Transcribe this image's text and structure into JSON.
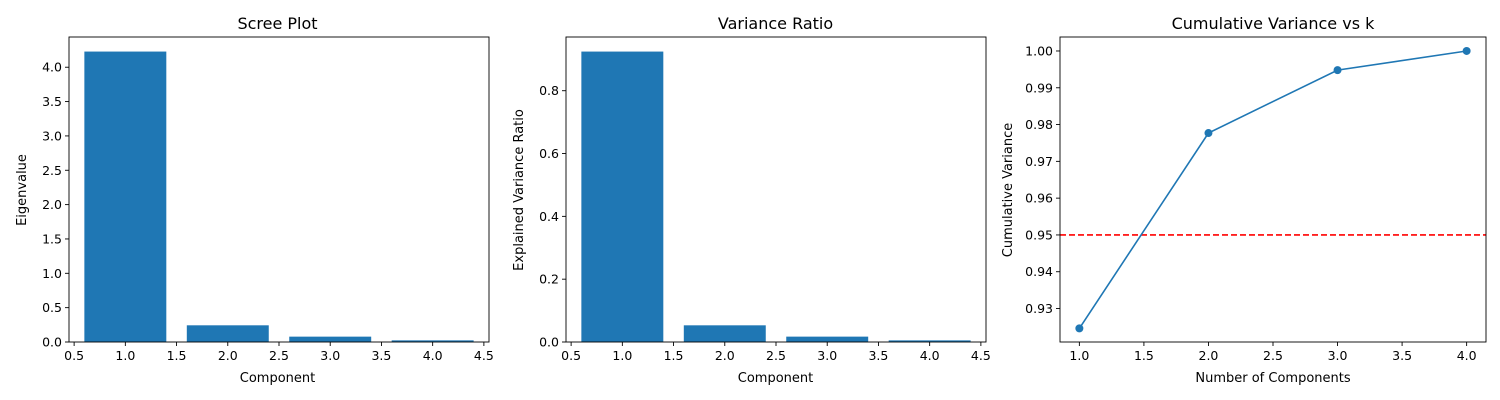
{
  "chart_data": [
    {
      "type": "bar",
      "title": "Scree Plot",
      "xlabel": "Component",
      "ylabel": "Eigenvalue",
      "x": [
        1,
        2,
        3,
        4
      ],
      "values": [
        4.228,
        0.243,
        0.078,
        0.024
      ],
      "color": "#1f77b4",
      "xlim": [
        0.45,
        4.55
      ],
      "ylim": [
        0,
        4.44
      ],
      "xticks": [
        0.5,
        1.0,
        1.5,
        2.0,
        2.5,
        3.0,
        3.5,
        4.0,
        4.5
      ],
      "xtick_labels": [
        "0.5",
        "1.0",
        "1.5",
        "2.0",
        "2.5",
        "3.0",
        "3.5",
        "4.0",
        "4.5"
      ],
      "yticks": [
        0,
        0.5,
        1.0,
        1.5,
        2.0,
        2.5,
        3.0,
        3.5,
        4.0
      ],
      "ytick_labels": [
        "0.0",
        "0.5",
        "1.0",
        "1.5",
        "2.0",
        "2.5",
        "3.0",
        "3.5",
        "4.0"
      ],
      "grid": false
    },
    {
      "type": "bar",
      "title": "Variance Ratio",
      "xlabel": "Component",
      "ylabel": "Explained Variance Ratio",
      "x": [
        1,
        2,
        3,
        4
      ],
      "values": [
        0.9246,
        0.0531,
        0.0171,
        0.0052
      ],
      "color": "#1f77b4",
      "xlim": [
        0.45,
        4.55
      ],
      "ylim": [
        0,
        0.971
      ],
      "xticks": [
        0.5,
        1.0,
        1.5,
        2.0,
        2.5,
        3.0,
        3.5,
        4.0,
        4.5
      ],
      "xtick_labels": [
        "0.5",
        "1.0",
        "1.5",
        "2.0",
        "2.5",
        "3.0",
        "3.5",
        "4.0",
        "4.5"
      ],
      "yticks": [
        0,
        0.2,
        0.4,
        0.6,
        0.8
      ],
      "ytick_labels": [
        "0.0",
        "0.2",
        "0.4",
        "0.6",
        "0.8"
      ],
      "grid": false
    },
    {
      "type": "line",
      "title": "Cumulative Variance vs k",
      "xlabel": "Number of Components",
      "ylabel": "Cumulative Variance",
      "x": [
        1,
        2,
        3,
        4
      ],
      "values": [
        0.9246,
        0.9777,
        0.9948,
        1.0
      ],
      "color": "#1f77b4",
      "marker": "circle",
      "reference_line": {
        "y": 0.95,
        "color": "#ff0000",
        "style": "dashed"
      },
      "xlim": [
        0.85,
        4.15
      ],
      "ylim": [
        0.9209,
        1.0038
      ],
      "xticks": [
        1.0,
        1.5,
        2.0,
        2.5,
        3.0,
        3.5,
        4.0
      ],
      "xtick_labels": [
        "1.0",
        "1.5",
        "2.0",
        "2.5",
        "3.0",
        "3.5",
        "4.0"
      ],
      "yticks": [
        0.93,
        0.94,
        0.95,
        0.96,
        0.97,
        0.98,
        0.99,
        1.0
      ],
      "ytick_labels": [
        "0.93",
        "0.94",
        "0.95",
        "0.96",
        "0.97",
        "0.98",
        "0.99",
        "1.00"
      ],
      "grid": false
    }
  ]
}
